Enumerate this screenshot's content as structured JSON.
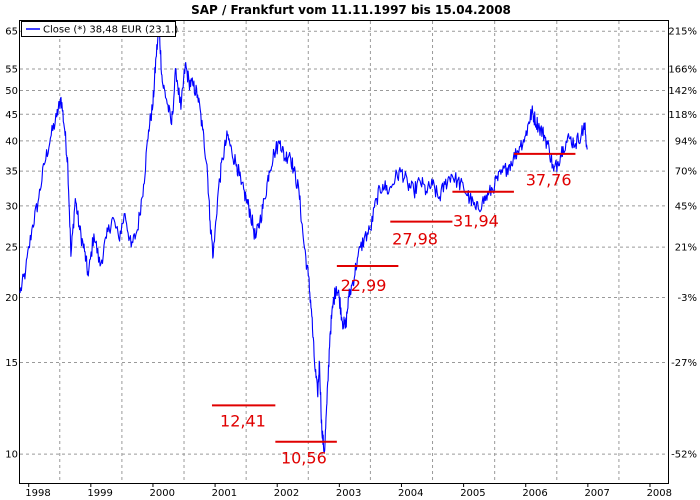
{
  "chart_data": {
    "type": "line",
    "title": "SAP / Frankfurt vom 11.11.1997 bis 15.04.2008",
    "legend": {
      "label": "Close (*) 38,48 EUR (23.1.)",
      "position": "top-left"
    },
    "colors": {
      "line": "#0000ff",
      "annotation": "#e00000",
      "grid": "#9a9a9a"
    },
    "x_ticks": [
      "1998",
      "1999",
      "2000",
      "2001",
      "2002",
      "2003",
      "2004",
      "2005",
      "2006",
      "2007",
      "2008"
    ],
    "x_range": [
      1997.86,
      2008.29
    ],
    "y_scale": "log",
    "y_range": [
      8.8,
      68
    ],
    "y_ticks_left": [
      10,
      15,
      20,
      25,
      30,
      35,
      40,
      45,
      50,
      55,
      65
    ],
    "y_ticks_right": [
      {
        "label": "215%",
        "value": 65
      },
      {
        "label": "166%",
        "value": 55
      },
      {
        "label": "142%",
        "value": 50
      },
      {
        "label": "118%",
        "value": 45
      },
      {
        "label": "94%",
        "value": 40
      },
      {
        "label": "70%",
        "value": 35
      },
      {
        "label": "45%",
        "value": 30
      },
      {
        "label": "21%",
        "value": 25
      },
      {
        "label": "-3%",
        "value": 20
      },
      {
        "label": "-27%",
        "value": 15
      },
      {
        "label": "-52%",
        "value": 10
      }
    ],
    "series": [
      {
        "name": "Close",
        "points": [
          [
            1997.86,
            20.4
          ],
          [
            1997.95,
            22.5
          ],
          [
            1998.05,
            27.0
          ],
          [
            1998.15,
            30.5
          ],
          [
            1998.25,
            36.0
          ],
          [
            1998.35,
            40.5
          ],
          [
            1998.45,
            44.5
          ],
          [
            1998.52,
            48.5
          ],
          [
            1998.58,
            42.0
          ],
          [
            1998.63,
            36.0
          ],
          [
            1998.68,
            24.0
          ],
          [
            1998.75,
            31.0
          ],
          [
            1998.82,
            27.0
          ],
          [
            1998.9,
            24.5
          ],
          [
            1998.96,
            22.0
          ],
          [
            1999.05,
            26.5
          ],
          [
            1999.15,
            23.0
          ],
          [
            1999.25,
            26.0
          ],
          [
            1999.35,
            28.5
          ],
          [
            1999.45,
            26.0
          ],
          [
            1999.55,
            29.0
          ],
          [
            1999.65,
            25.0
          ],
          [
            1999.75,
            27.0
          ],
          [
            1999.85,
            33.0
          ],
          [
            1999.93,
            42.0
          ],
          [
            2000.0,
            47.0
          ],
          [
            2000.05,
            58.0
          ],
          [
            2000.1,
            66.0
          ],
          [
            2000.15,
            52.0
          ],
          [
            2000.22,
            48.0
          ],
          [
            2000.3,
            43.0
          ],
          [
            2000.37,
            55.0
          ],
          [
            2000.45,
            46.0
          ],
          [
            2000.52,
            56.0
          ],
          [
            2000.58,
            52.0
          ],
          [
            2000.65,
            51.0
          ],
          [
            2000.72,
            49.0
          ],
          [
            2000.8,
            42.0
          ],
          [
            2000.87,
            36.0
          ],
          [
            2000.92,
            28.0
          ],
          [
            2000.97,
            24.0
          ],
          [
            2001.05,
            32.0
          ],
          [
            2001.12,
            37.0
          ],
          [
            2001.2,
            41.0
          ],
          [
            2001.27,
            38.0
          ],
          [
            2001.35,
            36.0
          ],
          [
            2001.42,
            33.0
          ],
          [
            2001.5,
            31.0
          ],
          [
            2001.57,
            29.0
          ],
          [
            2001.65,
            26.0
          ],
          [
            2001.72,
            28.0
          ],
          [
            2001.8,
            31.0
          ],
          [
            2001.87,
            35.0
          ],
          [
            2001.95,
            38.0
          ],
          [
            2002.05,
            40.0
          ],
          [
            2002.12,
            37.0
          ],
          [
            2002.2,
            38.0
          ],
          [
            2002.27,
            35.0
          ],
          [
            2002.35,
            32.0
          ],
          [
            2002.42,
            26.0
          ],
          [
            2002.5,
            22.0
          ],
          [
            2002.55,
            19.0
          ],
          [
            2002.6,
            15.0
          ],
          [
            2002.65,
            13.0
          ],
          [
            2002.68,
            15.0
          ],
          [
            2002.72,
            11.0
          ],
          [
            2002.76,
            10.1
          ],
          [
            2002.8,
            12.5
          ],
          [
            2002.85,
            17.0
          ],
          [
            2002.9,
            19.5
          ],
          [
            2002.95,
            21.0
          ],
          [
            2003.0,
            20.0
          ],
          [
            2003.05,
            18.0
          ],
          [
            2003.1,
            17.5
          ],
          [
            2003.15,
            20.0
          ],
          [
            2003.22,
            21.5
          ],
          [
            2003.3,
            24.0
          ],
          [
            2003.4,
            26.0
          ],
          [
            2003.5,
            27.0
          ],
          [
            2003.6,
            31.0
          ],
          [
            2003.7,
            33.0
          ],
          [
            2003.8,
            32.0
          ],
          [
            2003.9,
            34.0
          ],
          [
            2004.0,
            35.0
          ],
          [
            2004.1,
            33.0
          ],
          [
            2004.2,
            32.0
          ],
          [
            2004.3,
            33.5
          ],
          [
            2004.4,
            32.0
          ],
          [
            2004.5,
            33.0
          ],
          [
            2004.6,
            31.0
          ],
          [
            2004.7,
            33.0
          ],
          [
            2004.8,
            34.5
          ],
          [
            2004.9,
            33.5
          ],
          [
            2005.0,
            32.5
          ],
          [
            2005.1,
            31.0
          ],
          [
            2005.2,
            29.5
          ],
          [
            2005.3,
            30.5
          ],
          [
            2005.4,
            31.5
          ],
          [
            2005.5,
            33.0
          ],
          [
            2005.6,
            34.5
          ],
          [
            2005.7,
            35.5
          ],
          [
            2005.8,
            37.0
          ],
          [
            2005.9,
            39.0
          ],
          [
            2006.0,
            41.0
          ],
          [
            2006.05,
            43.5
          ],
          [
            2006.1,
            45.5
          ],
          [
            2006.15,
            44.0
          ],
          [
            2006.22,
            42.5
          ],
          [
            2006.3,
            41.0
          ],
          [
            2006.38,
            38.5
          ],
          [
            2006.45,
            35.0
          ],
          [
            2006.52,
            36.5
          ],
          [
            2006.6,
            39.0
          ],
          [
            2006.7,
            40.5
          ],
          [
            2006.8,
            39.5
          ],
          [
            2006.9,
            41.5
          ],
          [
            2006.95,
            42.5
          ],
          [
            2006.99,
            38.5
          ]
        ]
      }
    ],
    "annotations": [
      {
        "label": "12,41",
        "value": 12.41,
        "x_start": 2000.95,
        "x_end": 2001.97,
        "label_x": 2001.08,
        "label_y": 11.3
      },
      {
        "label": "10,56",
        "value": 10.56,
        "x_start": 2001.97,
        "x_end": 2002.96,
        "label_x": 2002.06,
        "label_y": 9.6
      },
      {
        "label": "22,99",
        "value": 22.99,
        "x_start": 2002.96,
        "x_end": 2003.95,
        "label_x": 2003.02,
        "label_y": 20.6
      },
      {
        "label": "27,98",
        "value": 27.98,
        "x_start": 2003.82,
        "x_end": 2004.82,
        "label_x": 2003.85,
        "label_y": 25.3
      },
      {
        "label": "31,94",
        "value": 31.94,
        "x_start": 2004.82,
        "x_end": 2005.81,
        "label_x": 2004.83,
        "label_y": 27.4
      },
      {
        "label": "37,76",
        "value": 37.76,
        "x_start": 2005.81,
        "x_end": 2006.8,
        "label_x": 2006.0,
        "label_y": 32.8
      }
    ]
  }
}
